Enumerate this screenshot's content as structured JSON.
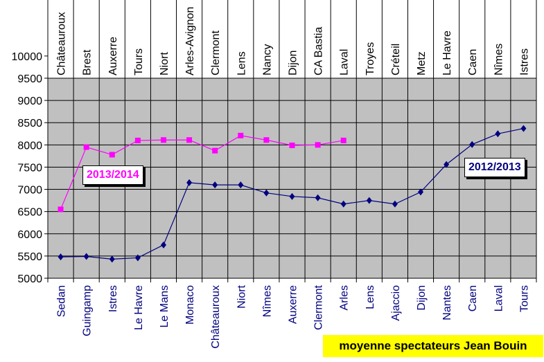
{
  "chart_data": {
    "type": "line",
    "title": "moyenne spectateurs Jean Bouin",
    "xlabel": "",
    "ylabel": "",
    "ylim": [
      5000,
      10000
    ],
    "y_ticks": [
      5000,
      5500,
      6000,
      6500,
      7000,
      7500,
      8000,
      8500,
      9000,
      9500,
      10000
    ],
    "top_axis_labels": [
      "Châteauroux",
      "Brest",
      "Auxerre",
      "Tours",
      "Niort",
      "Arles-Avignon",
      "Clermont",
      "Lens",
      "Nancy",
      "Dijon",
      "CA Bastia",
      "Laval",
      "Troyes",
      "Créteil",
      "Metz",
      "Le Havre",
      "Caen",
      "Nîmes",
      "Istres"
    ],
    "bottom_axis_labels": [
      "Sedan",
      "Guingamp",
      "Istres",
      "Le Havre",
      "Le Mans",
      "Monaco",
      "Châteauroux",
      "Niort",
      "Nîmes",
      "Auxerre",
      "Clermont",
      "Arles",
      "Lens",
      "Ajaccio",
      "Dijon",
      "Nantes",
      "Caen",
      "Laval",
      "Tours"
    ],
    "grid": true,
    "series": [
      {
        "name": "2013/2014",
        "color": "#ff00ff",
        "marker": "square",
        "axis": "top",
        "values": [
          6550,
          7950,
          7780,
          8100,
          8110,
          8110,
          7870,
          8210,
          8110,
          7990,
          8000,
          8100
        ]
      },
      {
        "name": "2012/2013",
        "color": "#000080",
        "marker": "diamond",
        "axis": "bottom",
        "values": [
          5480,
          5490,
          5430,
          5460,
          5750,
          7150,
          7100,
          7100,
          6920,
          6840,
          6810,
          6670,
          6750,
          6670,
          6940,
          7560,
          8010,
          8250,
          8370
        ]
      }
    ]
  }
}
